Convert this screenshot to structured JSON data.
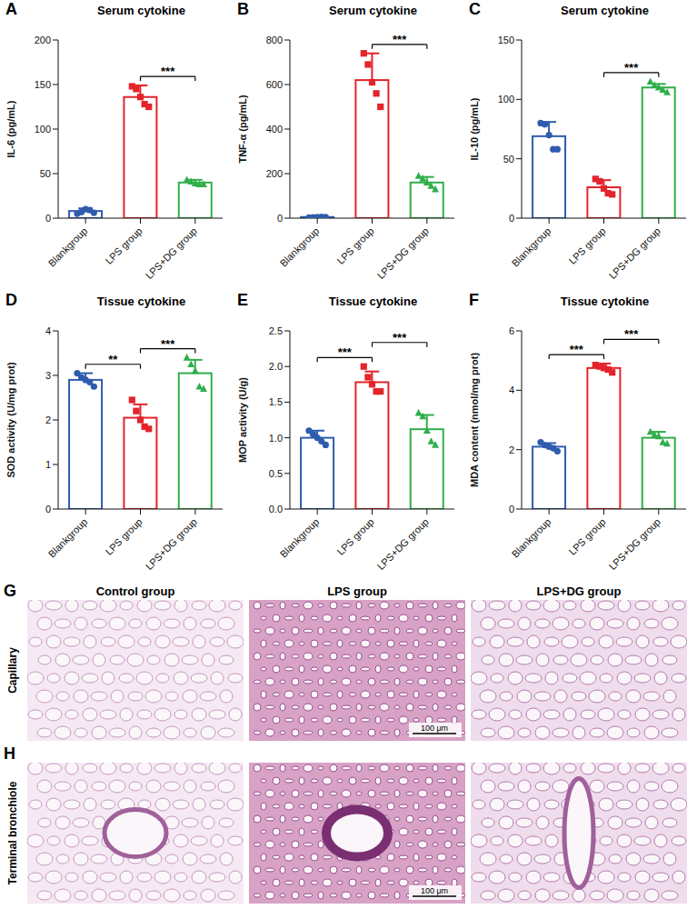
{
  "chart_data": [
    {
      "panel": "A",
      "type": "bar",
      "title": "Serum cytokine",
      "y_label": "IL-6 (pg/mL)",
      "categories": [
        "Blankgroup",
        "LPS group",
        "LPS+DG group"
      ],
      "values": [
        8,
        136,
        40
      ],
      "errors": [
        3,
        13,
        3
      ],
      "colors": [
        "#2f5cad",
        "#e3242b",
        "#2fae4a"
      ],
      "points": [
        {
          "marker": "circle",
          "values": [
            5,
            7,
            10,
            9,
            6
          ]
        },
        {
          "marker": "square",
          "values": [
            148,
            145,
            136,
            128,
            125
          ]
        },
        {
          "marker": "triangle",
          "values": [
            43,
            41,
            39,
            38,
            38
          ]
        }
      ],
      "significance": [
        {
          "pair": [
            "LPS group",
            "LPS+DG group"
          ],
          "label": "***"
        }
      ],
      "ylim": [
        0,
        200
      ],
      "yticks": [
        0,
        50,
        100,
        150,
        200
      ],
      "grid": false
    },
    {
      "panel": "B",
      "type": "bar",
      "title": "Serum cytokine",
      "y_label": "TNF-α (pg/mL)",
      "categories": [
        "Blankgroup",
        "LPS group",
        "LPS+DG group"
      ],
      "values": [
        5,
        620,
        160
      ],
      "errors": [
        2,
        120,
        25
      ],
      "colors": [
        "#2f5cad",
        "#e3242b",
        "#2fae4a"
      ],
      "points": [
        {
          "marker": "circle",
          "values": [
            3,
            4,
            5,
            6,
            5
          ]
        },
        {
          "marker": "square",
          "values": [
            740,
            690,
            610,
            560,
            500
          ]
        },
        {
          "marker": "triangle",
          "values": [
            190,
            178,
            160,
            145,
            130
          ]
        }
      ],
      "significance": [
        {
          "pair": [
            "LPS group",
            "LPS+DG group"
          ],
          "label": "***"
        }
      ],
      "ylim": [
        0,
        800
      ],
      "yticks": [
        0,
        200,
        400,
        600,
        800
      ],
      "grid": false
    },
    {
      "panel": "C",
      "type": "bar",
      "title": "Serum cytokine",
      "y_label": "IL-10 (pg/mL)",
      "categories": [
        "Blankgroup",
        "LPS group",
        "LPS+DG group"
      ],
      "values": [
        69,
        26,
        110
      ],
      "errors": [
        12,
        6,
        3
      ],
      "colors": [
        "#2f5cad",
        "#e3242b",
        "#2fae4a"
      ],
      "points": [
        {
          "marker": "circle",
          "values": [
            80,
            79,
            70,
            58,
            58
          ]
        },
        {
          "marker": "square",
          "values": [
            33,
            31,
            25,
            21,
            20
          ]
        },
        {
          "marker": "triangle",
          "values": [
            115,
            112,
            110,
            108,
            106
          ]
        }
      ],
      "significance": [
        {
          "pair": [
            "LPS group",
            "LPS+DG group"
          ],
          "label": "***"
        }
      ],
      "ylim": [
        0,
        150
      ],
      "yticks": [
        0,
        50,
        100,
        150
      ],
      "grid": false
    },
    {
      "panel": "D",
      "type": "bar",
      "title": "Tissue cytokine",
      "y_label": "SOD activity (U/mg prot)",
      "categories": [
        "Blankgroup",
        "LPS group",
        "LPS+DG group"
      ],
      "values": [
        2.9,
        2.05,
        3.05
      ],
      "errors": [
        0.15,
        0.3,
        0.3
      ],
      "colors": [
        "#2f5cad",
        "#e3242b",
        "#2fae4a"
      ],
      "points": [
        {
          "marker": "circle",
          "values": [
            3.05,
            2.95,
            2.9,
            2.85,
            2.75
          ]
        },
        {
          "marker": "square",
          "values": [
            2.45,
            2.2,
            2.0,
            1.85,
            1.8
          ]
        },
        {
          "marker": "triangle",
          "values": [
            3.4,
            3.25,
            3.1,
            2.75,
            2.7
          ]
        }
      ],
      "significance": [
        {
          "pair": [
            "Blankgroup",
            "LPS group"
          ],
          "label": "**"
        },
        {
          "pair": [
            "LPS group",
            "LPS+DG group"
          ],
          "label": "***"
        }
      ],
      "ylim": [
        0,
        4
      ],
      "yticks": [
        0,
        1,
        2,
        3,
        4
      ],
      "grid": false
    },
    {
      "panel": "E",
      "type": "bar",
      "title": "Tissue cytokine",
      "y_label": "MOP activity (U/g)",
      "categories": [
        "Blankgroup",
        "LPS group",
        "LPS+DG group"
      ],
      "values": [
        1.0,
        1.78,
        1.12
      ],
      "errors": [
        0.1,
        0.15,
        0.2
      ],
      "colors": [
        "#2f5cad",
        "#e3242b",
        "#2fae4a"
      ],
      "points": [
        {
          "marker": "circle",
          "values": [
            1.1,
            1.05,
            1.0,
            0.95,
            0.9
          ]
        },
        {
          "marker": "square",
          "values": [
            2.0,
            1.85,
            1.75,
            1.65,
            1.65
          ]
        },
        {
          "marker": "triangle",
          "values": [
            1.35,
            1.3,
            1.1,
            0.95,
            0.9
          ]
        }
      ],
      "significance": [
        {
          "pair": [
            "Blankgroup",
            "LPS group"
          ],
          "label": "***"
        },
        {
          "pair": [
            "LPS group",
            "LPS+DG group"
          ],
          "label": "***"
        }
      ],
      "ylim": [
        0,
        2.5
      ],
      "yticks": [
        {
          "value": 0,
          "label": "0.0"
        },
        0.5,
        {
          "value": 1,
          "label": "1.0"
        },
        1.5,
        {
          "value": 2,
          "label": "2.0"
        },
        2.5
      ],
      "grid": false
    },
    {
      "panel": "F",
      "type": "bar",
      "title": "Tissue cytokine",
      "y_label": "MDA content (nmol/mg prot)",
      "categories": [
        "Blankgroup",
        "LPS group",
        "LPS+DG group"
      ],
      "values": [
        2.1,
        4.75,
        2.4
      ],
      "errors": [
        0.12,
        0.15,
        0.2
      ],
      "colors": [
        "#2f5cad",
        "#e3242b",
        "#2fae4a"
      ],
      "points": [
        {
          "marker": "circle",
          "values": [
            2.25,
            2.15,
            2.1,
            2.05,
            1.95
          ]
        },
        {
          "marker": "square",
          "values": [
            4.85,
            4.8,
            4.75,
            4.7,
            4.6
          ]
        },
        {
          "marker": "triangle",
          "values": [
            2.6,
            2.5,
            2.45,
            2.25,
            2.2
          ]
        }
      ],
      "significance": [
        {
          "pair": [
            "Blankgroup",
            "LPS group"
          ],
          "label": "***"
        },
        {
          "pair": [
            "LPS group",
            "LPS+DG group"
          ],
          "label": "***"
        }
      ],
      "ylim": [
        0,
        6
      ],
      "yticks": [
        0,
        2,
        4,
        6
      ],
      "grid": false
    }
  ],
  "histology": {
    "columns": [
      "Control group",
      "LPS group",
      "LPS+DG group"
    ],
    "rows": [
      {
        "panel": "G",
        "label": "Capillary"
      },
      {
        "panel": "H",
        "label": "Terminal bronchiole"
      }
    ],
    "scale_bar": "100 μm"
  }
}
